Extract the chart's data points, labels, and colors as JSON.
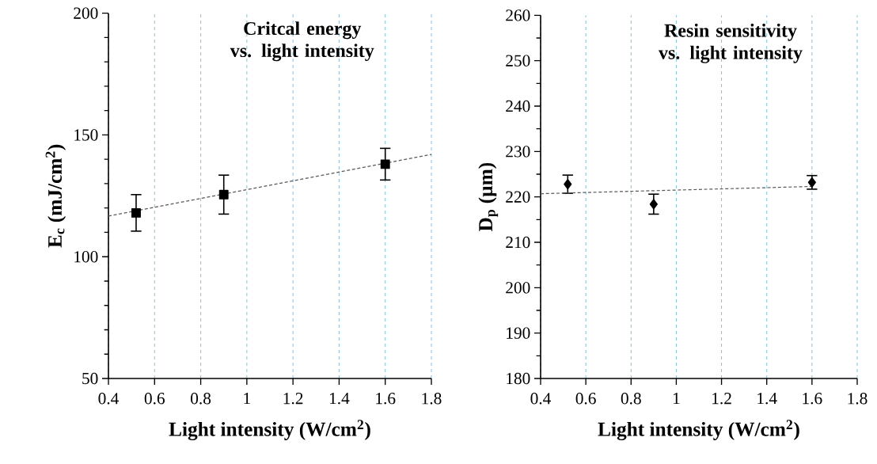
{
  "chart_data": [
    {
      "type": "scatter",
      "title": "Critcal energy vs. light intensity",
      "xlabel": "Light intensity (W/cm$^{2}$)",
      "ylabel": "E$_{c}$ (mJ/cm$^{2}$)",
      "xlim": [
        0.4,
        1.8
      ],
      "xticks": [
        0.4,
        0.6,
        0.8,
        1,
        1.2,
        1.4,
        1.6,
        1.8
      ],
      "ylim": [
        50,
        200
      ],
      "yticks": [
        50,
        100,
        150,
        200
      ],
      "grid": "x",
      "series": [
        {
          "type": "scatter",
          "color": "#000000",
          "marker": "square",
          "x": [
            0.52,
            0.9,
            1.6
          ],
          "values": [
            118,
            125.5,
            138
          ],
          "errors": [
            7.5,
            8,
            6.5
          ]
        },
        {
          "type": "line",
          "color": "#595959",
          "line_style": "dashed",
          "marker": "none",
          "x": [
            0.4,
            1.8
          ],
          "values": [
            116.7,
            142
          ]
        }
      ]
    },
    {
      "type": "scatter",
      "title": "Resin sensitivity vs. light intensity",
      "xlabel": "Light intensity (W/cm$^{2}$)",
      "ylabel": "D$_{p}$ (µm)",
      "xlim": [
        0.4,
        1.8
      ],
      "xticks": [
        0.4,
        0.6,
        0.8,
        1,
        1.2,
        1.4,
        1.6,
        1.8
      ],
      "ylim": [
        180,
        260
      ],
      "yticks": [
        180,
        190,
        200,
        210,
        220,
        230,
        240,
        250,
        260
      ],
      "grid": "x",
      "series": [
        {
          "type": "scatter",
          "color": "#000000",
          "marker": "diamond",
          "x": [
            0.52,
            0.9,
            1.6
          ],
          "values": [
            222.8,
            218.4,
            223.2
          ],
          "errors": [
            2,
            2.2,
            1.5
          ]
        },
        {
          "type": "line",
          "color": "#595959",
          "line_style": "dashed",
          "marker": "none",
          "x": [
            0.4,
            1.6
          ],
          "values": [
            220.7,
            222.3
          ]
        }
      ]
    }
  ]
}
